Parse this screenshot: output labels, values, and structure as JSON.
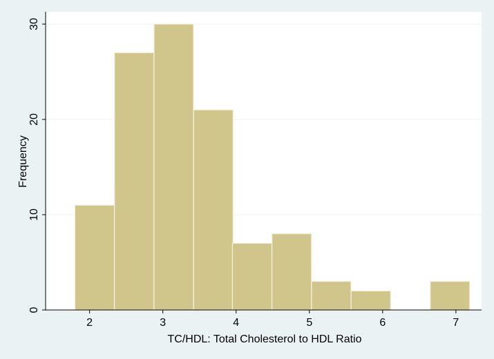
{
  "chart_data": {
    "type": "bar",
    "title": "",
    "xlabel": "TC/HDL: Total Cholesterol to HDL Ratio",
    "ylabel": "Frequency",
    "bin_width": 0.538,
    "bins": [
      {
        "start": 1.8,
        "count": 11
      },
      {
        "start": 2.34,
        "count": 27
      },
      {
        "start": 2.88,
        "count": 30
      },
      {
        "start": 3.42,
        "count": 21
      },
      {
        "start": 3.95,
        "count": 7
      },
      {
        "start": 4.49,
        "count": 8
      },
      {
        "start": 5.03,
        "count": 3
      },
      {
        "start": 5.57,
        "count": 2
      },
      {
        "start": 6.11,
        "count": 0
      },
      {
        "start": 6.65,
        "count": 3
      }
    ],
    "xticks": [
      2,
      3,
      4,
      5,
      6,
      7
    ],
    "yticks": [
      0,
      10,
      20,
      30
    ],
    "xlim": [
      1.4,
      7.35
    ],
    "ylim": [
      0,
      31.3
    ],
    "grid": true,
    "colors": {
      "background": "#eaf2f3",
      "plot_area": "#ffffff",
      "bar_fill": "#d0c68b",
      "bar_stroke": "#f2efdc",
      "grid": "#eaf2f3",
      "axis": "#000000"
    }
  }
}
